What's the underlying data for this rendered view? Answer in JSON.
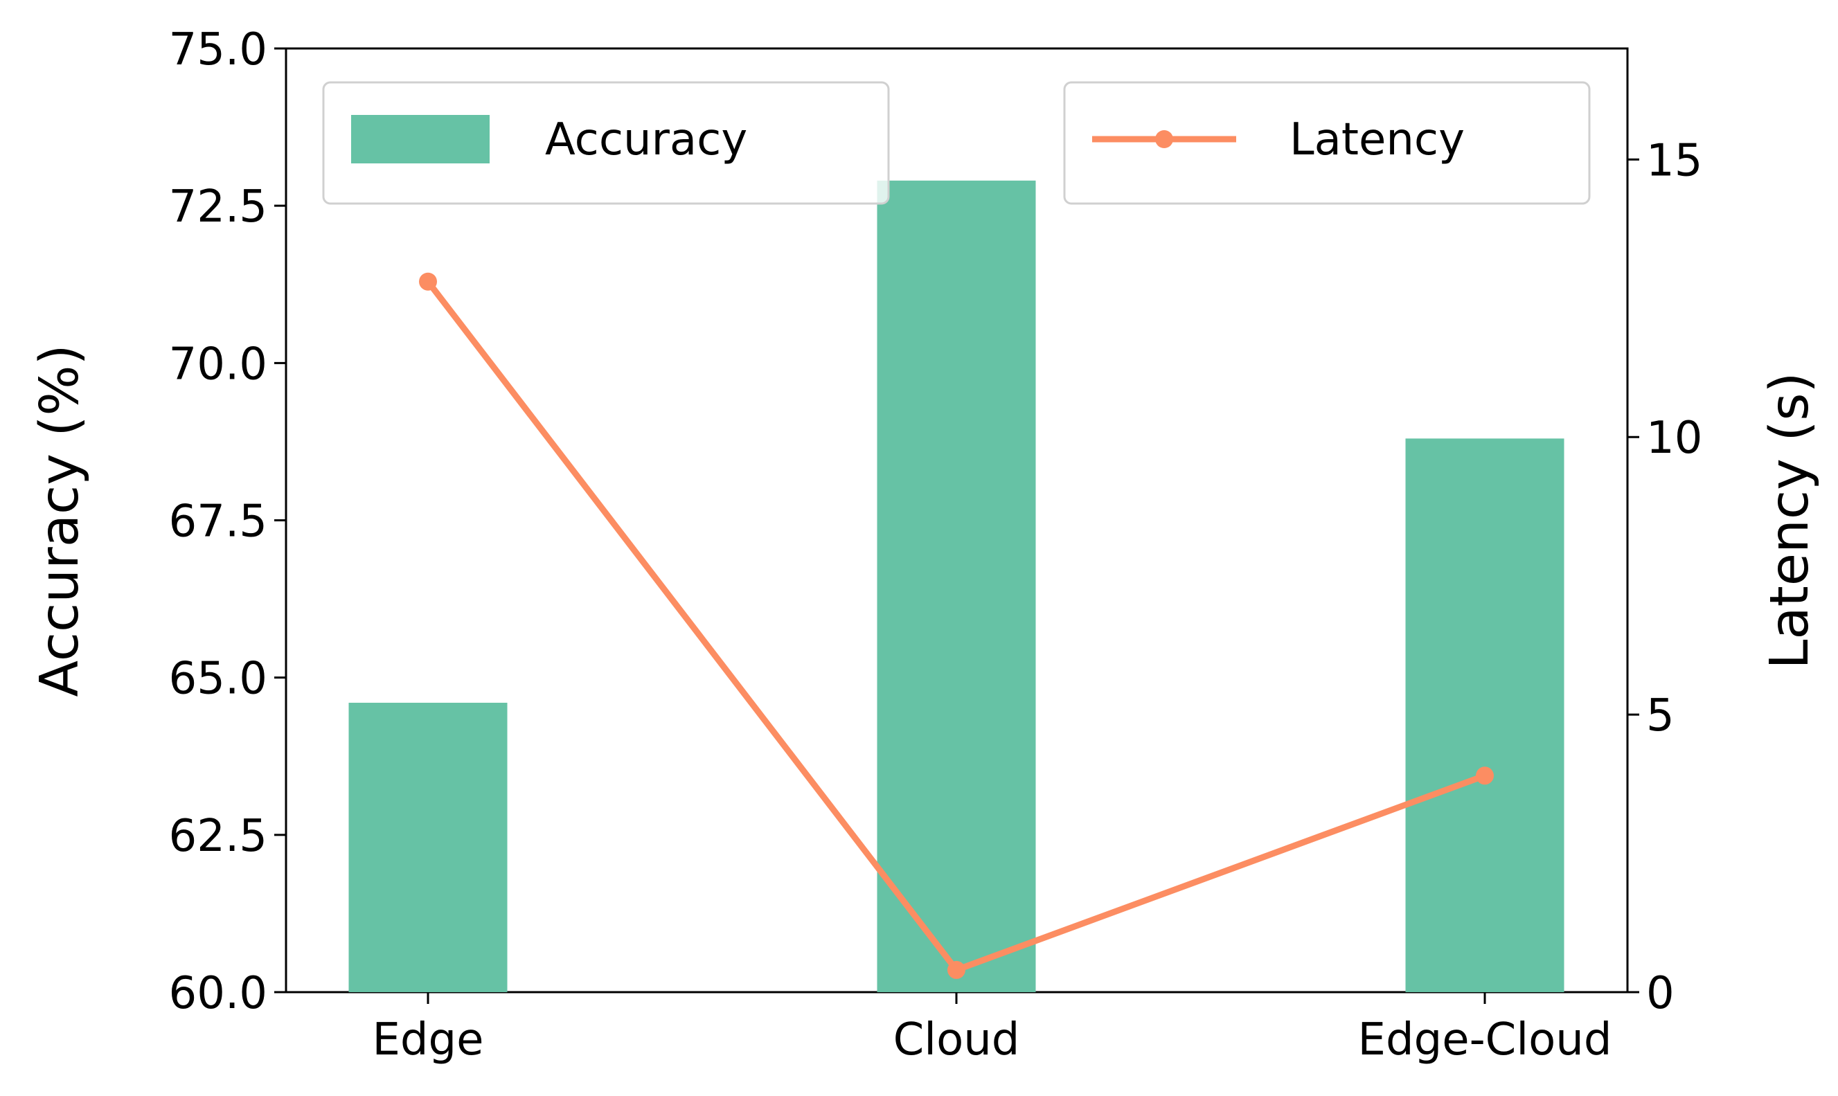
{
  "chart_data": {
    "type": "bar",
    "categories": [
      "Edge",
      "Cloud",
      "Edge-Cloud"
    ],
    "series": [
      {
        "name": "Accuracy",
        "type": "bar",
        "axis": "left",
        "color": "#66c2a5",
        "values": [
          64.6,
          72.9,
          68.8
        ]
      },
      {
        "name": "Latency",
        "type": "line",
        "axis": "right",
        "color": "#fc8d62",
        "marker": "circle",
        "values": [
          12.8,
          0.4,
          3.9
        ]
      }
    ],
    "left_axis": {
      "label": "Accuracy (%)",
      "range": [
        60.0,
        75.0
      ],
      "ticks": [
        "60.0",
        "62.5",
        "65.0",
        "67.5",
        "70.0",
        "72.5",
        "75.0"
      ]
    },
    "right_axis": {
      "label": "Latency (s)",
      "range": [
        0,
        17
      ],
      "ticks": [
        "0",
        "5",
        "10",
        "15"
      ]
    },
    "legend": [
      {
        "label": "Accuracy",
        "placement": "top-left",
        "symbol": "bar"
      },
      {
        "label": "Latency",
        "placement": "top-right",
        "symbol": "line-marker"
      }
    ],
    "grid": false
  }
}
